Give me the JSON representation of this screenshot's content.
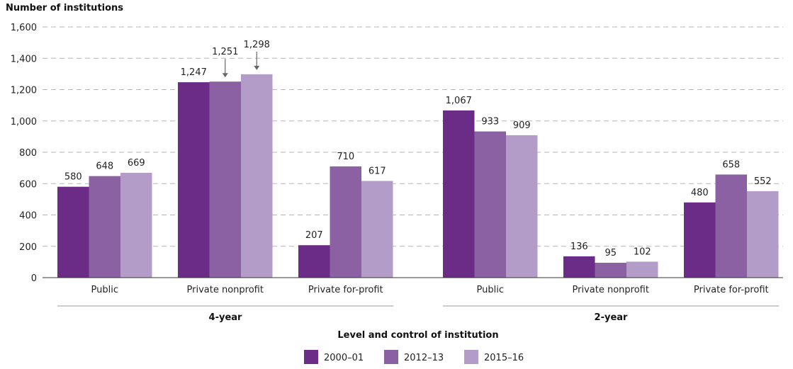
{
  "chart_data": {
    "type": "bar",
    "title": "",
    "ylabel": "Number of institutions",
    "xlabel": "Level and control of institution",
    "ylim": [
      0,
      1600
    ],
    "yticks": [
      "0",
      "200",
      "400",
      "600",
      "800",
      "1,000",
      "1,200",
      "1,400",
      "1,600"
    ],
    "ytick_values": [
      0,
      200,
      400,
      600,
      800,
      1000,
      1200,
      1400,
      1600
    ],
    "grid": "horizontal dashed",
    "legend_position": "bottom",
    "groups": [
      {
        "label": "4-year",
        "categories": [
          "Public",
          "Private nonprofit",
          "Private for-profit"
        ]
      },
      {
        "label": "2-year",
        "categories": [
          "Public",
          "Private nonprofit",
          "Private for-profit"
        ]
      }
    ],
    "categories": [
      "Public",
      "Private nonprofit",
      "Private for-profit",
      "Public",
      "Private nonprofit",
      "Private for-profit"
    ],
    "series": [
      {
        "name": "2000–01",
        "color": "#6b2c87",
        "values": [
          580,
          1247,
          207,
          1067,
          136,
          480
        ],
        "labels": [
          "580",
          "1,247",
          "207",
          "1,067",
          "136",
          "480"
        ]
      },
      {
        "name": "2012–13",
        "color": "#8c61a4",
        "values": [
          648,
          1251,
          710,
          933,
          95,
          658
        ],
        "labels": [
          "648",
          "1,251",
          "710",
          "933",
          "95",
          "658"
        ]
      },
      {
        "name": "2015–16",
        "color": "#b39cc8",
        "values": [
          669,
          1298,
          617,
          909,
          102,
          552
        ],
        "labels": [
          "669",
          "1,298",
          "617",
          "909",
          "102",
          "552"
        ]
      }
    ],
    "annotations": [
      {
        "category_index": 1,
        "series_index": 1,
        "arrow": true
      },
      {
        "category_index": 1,
        "series_index": 2,
        "arrow": true
      }
    ]
  }
}
